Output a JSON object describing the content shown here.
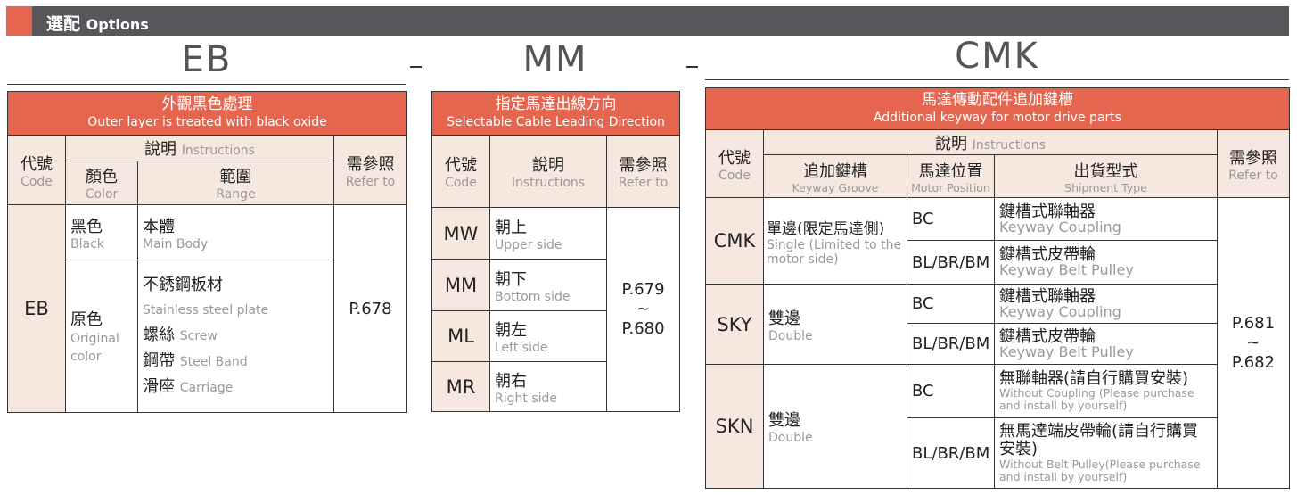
{
  "header": {
    "title_zh": "選配",
    "title_en": "Options"
  },
  "eb": {
    "title": "EB",
    "sep": "-",
    "head_zh": "外觀黑色處理",
    "head_en": "Outer layer is treated with black oxide",
    "col_code_zh": "代號",
    "col_code_en": "Code",
    "col_inst_zh": "說明",
    "col_inst_en": "Instructions",
    "col_color_zh": "顏色",
    "col_color_en": "Color",
    "col_range_zh": "範圍",
    "col_range_en": "Range",
    "col_ref_zh": "需參照",
    "col_ref_en": "Refer to",
    "code": "EB",
    "ref": "P.678",
    "rows": [
      {
        "color_zh": "黑色",
        "color_en": "Black",
        "range": [
          {
            "zh": "本體",
            "en": "Main Body"
          }
        ]
      },
      {
        "color_zh": "原色",
        "color_en": "Original color",
        "range_title_zh": "不銹鋼板材",
        "range_title_en": "Stainless steel plate",
        "range": [
          {
            "zh": "螺絲",
            "en": "Screw"
          },
          {
            "zh": "鋼帶",
            "en": "Steel Band"
          },
          {
            "zh": "滑座",
            "en": "Carriage"
          }
        ]
      }
    ]
  },
  "mm": {
    "title": "MM",
    "sep": "-",
    "head_zh": "指定馬達出線方向",
    "head_en": "Selectable Cable Leading Direction",
    "col_code_zh": "代號",
    "col_code_en": "Code",
    "col_inst_zh": "說明",
    "col_inst_en": "Instructions",
    "col_ref_zh": "需參照",
    "col_ref_en": "Refer to",
    "ref1": "P.679",
    "ref_sep": "~",
    "ref2": "P.680",
    "rows": [
      {
        "code": "MW",
        "zh": "朝上",
        "en": "Upper side"
      },
      {
        "code": "MM",
        "zh": "朝下",
        "en": "Bottom side"
      },
      {
        "code": "ML",
        "zh": "朝左",
        "en": "Left side"
      },
      {
        "code": "MR",
        "zh": "朝右",
        "en": "Right side"
      }
    ]
  },
  "cmk": {
    "title": "CMK",
    "head_zh": "馬達傳動配件追加鍵槽",
    "head_en": "Additional keyway for motor drive parts",
    "col_code_zh": "代號",
    "col_code_en": "Code",
    "col_inst_zh": "說明",
    "col_inst_en": "Instructions",
    "col_groove_zh": "追加鍵槽",
    "col_groove_en": "Keyway Groove",
    "col_pos_zh": "馬達位置",
    "col_pos_en": "Motor Position",
    "col_ship_zh": "出貨型式",
    "col_ship_en": "Shipment Type",
    "col_ref_zh": "需參照",
    "col_ref_en": "Refer to",
    "ref1": "P.681",
    "ref_sep": "~",
    "ref2": "P.682",
    "groups": [
      {
        "code": "CMK",
        "groove_zh": "單邊(限定馬達側)",
        "groove_en": "Single (Limited to the motor side)",
        "rows": [
          {
            "pos": "BC",
            "zh": "鍵槽式聯軸器",
            "en": "Keyway Coupling"
          },
          {
            "pos": "BL/BR/BM",
            "zh": "鍵槽式皮帶輪",
            "en": "Keyway Belt Pulley"
          }
        ]
      },
      {
        "code": "SKY",
        "groove_zh": "雙邊",
        "groove_en": "Double",
        "rows": [
          {
            "pos": "BC",
            "zh": "鍵槽式聯軸器",
            "en": "Keyway Coupling"
          },
          {
            "pos": "BL/BR/BM",
            "zh": "鍵槽式皮帶輪",
            "en": "Keyway Belt Pulley"
          }
        ]
      },
      {
        "code": "SKN",
        "groove_zh": "雙邊",
        "groove_en": "Double",
        "rows": [
          {
            "pos": "BC",
            "zh": "無聯軸器(請自行購買安裝)",
            "en": "Without Coupling (Please purchase and install by yourself)"
          },
          {
            "pos": "BL/BR/BM",
            "zh": "無馬達端皮帶輪(請自行購買安裝)",
            "en": "Without Belt Pulley(Please purchase and install by yourself)"
          }
        ]
      }
    ]
  },
  "colors": {
    "accent": "#e5654f",
    "header_bar": "#58565a",
    "cell_bg": "#f7e8df"
  }
}
